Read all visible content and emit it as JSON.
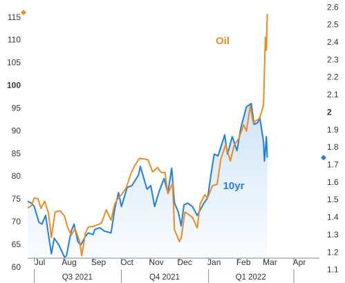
{
  "colors": {
    "oil": "#ef8a1e",
    "tenyr": "#1e7fe0",
    "tenyr_fill_top": "#cfe4f8",
    "tenyr_fill_bottom": "#ffffff",
    "axis": "#888888",
    "text": "#333333"
  },
  "chart_data": {
    "type": "line",
    "title": "",
    "x_range": [
      "2021-06-24",
      "2022-04-28"
    ],
    "y_left": {
      "label": "",
      "ylim": [
        58,
        118
      ],
      "ticks": [
        60,
        65,
        70,
        75,
        80,
        85,
        90,
        95,
        100,
        105,
        110,
        115
      ],
      "tick_labels": [
        "60",
        "65",
        "70",
        "75",
        "80",
        "85",
        "90",
        "95",
        "100",
        "105",
        "110",
        "115"
      ],
      "bold_tick": "100",
      "current_marker": 116
    },
    "y_right": {
      "label": "",
      "ylim": [
        1.063,
        2.621
      ],
      "ticks": [
        1.1,
        1.2,
        1.3,
        1.4,
        1.5,
        1.6,
        1.7,
        1.8,
        1.9,
        2.0,
        2.1,
        2.2,
        2.3,
        2.4,
        2.5,
        2.6
      ],
      "tick_labels": [
        "1.1",
        "1.2",
        "1.3",
        "1.4",
        "1.5",
        "1.6",
        "1.7",
        "1.8",
        "1.9",
        "2",
        "2.1",
        "2.2",
        "2.3",
        "2.4",
        "2.5",
        "2.6"
      ],
      "bold_tick": "2",
      "current_marker": 1.74
    },
    "months": [
      {
        "label": "Jul",
        "date": "2021-07-01"
      },
      {
        "label": "Aug",
        "date": "2021-08-01"
      },
      {
        "label": "Sep",
        "date": "2021-09-01"
      },
      {
        "label": "Oct",
        "date": "2021-10-01"
      },
      {
        "label": "Nov",
        "date": "2021-11-01"
      },
      {
        "label": "Dec",
        "date": "2021-12-01"
      },
      {
        "label": "Jan",
        "date": "2022-01-01"
      },
      {
        "label": "Feb",
        "date": "2022-02-01"
      },
      {
        "label": "Mar",
        "date": "2022-03-01"
      },
      {
        "label": "Apr",
        "date": "2022-04-01"
      }
    ],
    "quarters": [
      {
        "label": "Q3 2021",
        "start": "2021-07-01",
        "end": "2021-09-30"
      },
      {
        "label": "Q4 2021",
        "start": "2021-10-01",
        "end": "2021-12-31"
      },
      {
        "label": "Q1 2022",
        "start": "2022-01-01",
        "end": "2022-03-31"
      }
    ],
    "series": [
      {
        "name": "Oil",
        "axis": "left",
        "points": [
          [
            "2021-06-24",
            73.0
          ],
          [
            "2021-06-28",
            73.5
          ],
          [
            "2021-07-01",
            75.2
          ],
          [
            "2021-07-05",
            75.0
          ],
          [
            "2021-07-08",
            72.9
          ],
          [
            "2021-07-12",
            74.5
          ],
          [
            "2021-07-16",
            71.8
          ],
          [
            "2021-07-19",
            66.5
          ],
          [
            "2021-07-23",
            72.1
          ],
          [
            "2021-07-28",
            72.4
          ],
          [
            "2021-08-02",
            71.2
          ],
          [
            "2021-08-05",
            68.9
          ],
          [
            "2021-08-09",
            67.0
          ],
          [
            "2021-08-13",
            68.5
          ],
          [
            "2021-08-18",
            65.5
          ],
          [
            "2021-08-20",
            62.5
          ],
          [
            "2021-08-24",
            67.5
          ],
          [
            "2021-08-27",
            68.8
          ],
          [
            "2021-09-01",
            68.9
          ],
          [
            "2021-09-06",
            69.3
          ],
          [
            "2021-09-10",
            69.7
          ],
          [
            "2021-09-15",
            72.6
          ],
          [
            "2021-09-20",
            70.3
          ],
          [
            "2021-09-24",
            73.9
          ],
          [
            "2021-09-28",
            75.3
          ],
          [
            "2021-10-01",
            75.9
          ],
          [
            "2021-10-06",
            77.4
          ],
          [
            "2021-10-11",
            80.5
          ],
          [
            "2021-10-15",
            82.3
          ],
          [
            "2021-10-20",
            83.9
          ],
          [
            "2021-10-25",
            83.8
          ],
          [
            "2021-10-29",
            83.6
          ],
          [
            "2021-11-03",
            80.9
          ],
          [
            "2021-11-08",
            81.9
          ],
          [
            "2021-11-12",
            80.8
          ],
          [
            "2021-11-16",
            80.8
          ],
          [
            "2021-11-19",
            76.1
          ],
          [
            "2021-11-24",
            78.4
          ],
          [
            "2021-11-26",
            68.2
          ],
          [
            "2021-11-30",
            66.2
          ],
          [
            "2021-12-01",
            65.6
          ],
          [
            "2021-12-03",
            66.3
          ],
          [
            "2021-12-07",
            72.1
          ],
          [
            "2021-12-10",
            71.7
          ],
          [
            "2021-12-15",
            70.9
          ],
          [
            "2021-12-20",
            68.6
          ],
          [
            "2021-12-23",
            73.8
          ],
          [
            "2021-12-28",
            75.9
          ],
          [
            "2021-12-31",
            75.2
          ],
          [
            "2022-01-05",
            77.9
          ],
          [
            "2022-01-10",
            78.2
          ],
          [
            "2022-01-14",
            83.8
          ],
          [
            "2022-01-19",
            86.9
          ],
          [
            "2022-01-24",
            83.3
          ],
          [
            "2022-01-28",
            86.8
          ],
          [
            "2022-02-02",
            88.3
          ],
          [
            "2022-02-07",
            91.3
          ],
          [
            "2022-02-10",
            89.9
          ],
          [
            "2022-02-14",
            95.5
          ],
          [
            "2022-02-17",
            91.8
          ],
          [
            "2022-02-22",
            92.4
          ],
          [
            "2022-02-24",
            92.8
          ],
          [
            "2022-02-28",
            95.7
          ],
          [
            "2022-03-01",
            103.4
          ],
          [
            "2022-03-02",
            110.6
          ],
          [
            "2022-03-03",
            107.7
          ],
          [
            "2022-03-04",
            115.7
          ]
        ]
      },
      {
        "name": "10yr",
        "axis": "right",
        "points": [
          [
            "2021-06-24",
            1.49
          ],
          [
            "2021-06-28",
            1.48
          ],
          [
            "2021-07-01",
            1.46
          ],
          [
            "2021-07-06",
            1.37
          ],
          [
            "2021-07-09",
            1.36
          ],
          [
            "2021-07-13",
            1.41
          ],
          [
            "2021-07-16",
            1.3
          ],
          [
            "2021-07-19",
            1.19
          ],
          [
            "2021-07-22",
            1.28
          ],
          [
            "2021-07-27",
            1.24
          ],
          [
            "2021-08-02",
            1.17
          ],
          [
            "2021-08-04",
            1.18
          ],
          [
            "2021-08-09",
            1.32
          ],
          [
            "2021-08-12",
            1.36
          ],
          [
            "2021-08-16",
            1.26
          ],
          [
            "2021-08-19",
            1.24
          ],
          [
            "2021-08-24",
            1.29
          ],
          [
            "2021-08-27",
            1.31
          ],
          [
            "2021-09-01",
            1.3
          ],
          [
            "2021-09-03",
            1.33
          ],
          [
            "2021-09-08",
            1.34
          ],
          [
            "2021-09-13",
            1.32
          ],
          [
            "2021-09-20",
            1.31
          ],
          [
            "2021-09-24",
            1.45
          ],
          [
            "2021-09-28",
            1.54
          ],
          [
            "2021-10-01",
            1.46
          ],
          [
            "2021-10-07",
            1.57
          ],
          [
            "2021-10-12",
            1.58
          ],
          [
            "2021-10-19",
            1.64
          ],
          [
            "2021-10-21",
            1.69
          ],
          [
            "2021-10-28",
            1.56
          ],
          [
            "2021-11-01",
            1.58
          ],
          [
            "2021-11-05",
            1.46
          ],
          [
            "2021-11-10",
            1.55
          ],
          [
            "2021-11-15",
            1.62
          ],
          [
            "2021-11-19",
            1.54
          ],
          [
            "2021-11-23",
            1.68
          ],
          [
            "2021-11-26",
            1.48
          ],
          [
            "2021-11-30",
            1.43
          ],
          [
            "2021-12-03",
            1.35
          ],
          [
            "2021-12-06",
            1.47
          ],
          [
            "2021-12-10",
            1.48
          ],
          [
            "2021-12-15",
            1.46
          ],
          [
            "2021-12-20",
            1.41
          ],
          [
            "2021-12-27",
            1.48
          ],
          [
            "2021-12-31",
            1.51
          ],
          [
            "2022-01-04",
            1.66
          ],
          [
            "2022-01-07",
            1.76
          ],
          [
            "2022-01-11",
            1.75
          ],
          [
            "2022-01-18",
            1.87
          ],
          [
            "2022-01-21",
            1.76
          ],
          [
            "2022-01-26",
            1.86
          ],
          [
            "2022-01-31",
            1.78
          ],
          [
            "2022-02-04",
            1.91
          ],
          [
            "2022-02-10",
            2.03
          ],
          [
            "2022-02-15",
            2.05
          ],
          [
            "2022-02-18",
            1.93
          ],
          [
            "2022-02-22",
            1.94
          ],
          [
            "2022-02-24",
            1.97
          ],
          [
            "2022-02-28",
            1.83
          ],
          [
            "2022-03-01",
            1.72
          ],
          [
            "2022-03-03",
            1.86
          ],
          [
            "2022-03-04",
            1.74
          ]
        ]
      }
    ],
    "annotations": [
      {
        "text": "Oil",
        "series": "Oil"
      },
      {
        "text": "10yr",
        "series": "10yr"
      }
    ],
    "grid": false,
    "legend": "none"
  }
}
